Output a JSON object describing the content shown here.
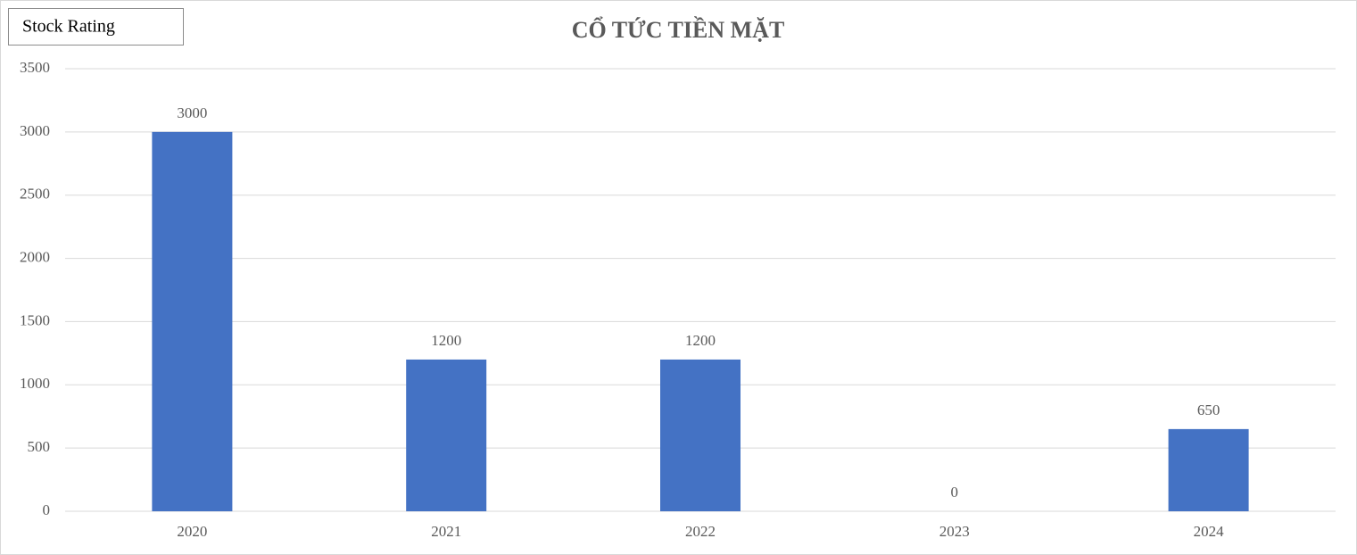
{
  "chart_data": {
    "type": "bar",
    "title": "CỔ TỨC TIỀN MẶT",
    "annotation": "Stock Rating",
    "categories": [
      "2020",
      "2021",
      "2022",
      "2023",
      "2024"
    ],
    "values": [
      3000,
      1200,
      1200,
      0,
      650
    ],
    "color": "#4472c4",
    "ylim": [
      0,
      3500
    ],
    "yticks": [
      0,
      500,
      1000,
      1500,
      2000,
      2500,
      3000,
      3500
    ],
    "grid": true
  }
}
